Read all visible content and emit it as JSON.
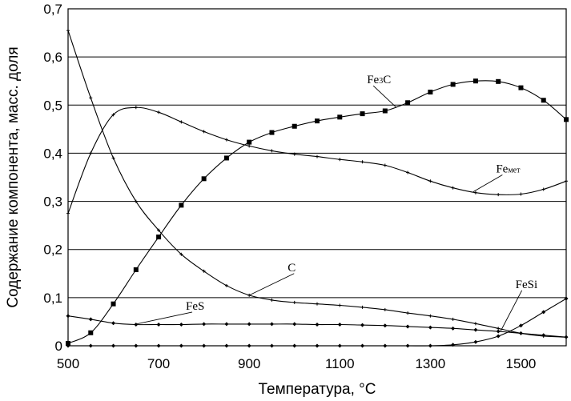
{
  "chart_data": {
    "type": "line",
    "xlabel": "Температура, °C",
    "ylabel": "Содержание компонента, масс. доля",
    "xlim": [
      500,
      1600
    ],
    "ylim": [
      0,
      0.7
    ],
    "xticks": [
      "500",
      "700",
      "900",
      "1100",
      "1300",
      "1500"
    ],
    "yticks": [
      "0",
      "0,1",
      "0,2",
      "0,3",
      "0,4",
      "0,5",
      "0,6",
      "0,7"
    ],
    "grid": "horizontal",
    "series": [
      {
        "name": "Fe3C",
        "label": "Fe3C",
        "label_main": "Fe",
        "label_sub": "3",
        "label_end": "C",
        "marker": "square",
        "x": [
          500,
          550,
          600,
          650,
          700,
          750,
          800,
          850,
          900,
          950,
          1000,
          1050,
          1100,
          1150,
          1200,
          1250,
          1300,
          1350,
          1400,
          1450,
          1500,
          1550,
          1600
        ],
        "y": [
          0.005,
          0.027,
          0.087,
          0.158,
          0.226,
          0.292,
          0.347,
          0.39,
          0.423,
          0.443,
          0.456,
          0.467,
          0.475,
          0.482,
          0.488,
          0.505,
          0.527,
          0.543,
          0.55,
          0.549,
          0.536,
          0.51,
          0.47
        ]
      },
      {
        "name": "Feмет",
        "label": "Feмет",
        "label_main": "Fe",
        "label_sub": "мет",
        "marker": "plus",
        "x": [
          500,
          550,
          600,
          650,
          700,
          750,
          800,
          850,
          900,
          950,
          1000,
          1050,
          1100,
          1150,
          1200,
          1250,
          1300,
          1350,
          1400,
          1450,
          1500,
          1550,
          1600
        ],
        "y": [
          0.275,
          0.4,
          0.48,
          0.495,
          0.485,
          0.465,
          0.445,
          0.428,
          0.415,
          0.405,
          0.398,
          0.393,
          0.387,
          0.382,
          0.375,
          0.36,
          0.342,
          0.328,
          0.318,
          0.314,
          0.315,
          0.325,
          0.342
        ]
      },
      {
        "name": "C",
        "label": "C",
        "marker": "plus",
        "x": [
          500,
          550,
          600,
          650,
          700,
          750,
          800,
          850,
          900,
          950,
          1000,
          1050,
          1100,
          1150,
          1200,
          1250,
          1300,
          1350,
          1400,
          1450,
          1500,
          1550,
          1600
        ],
        "y": [
          0.655,
          0.515,
          0.39,
          0.3,
          0.24,
          0.19,
          0.155,
          0.125,
          0.105,
          0.095,
          0.09,
          0.087,
          0.084,
          0.08,
          0.075,
          0.068,
          0.062,
          0.055,
          0.046,
          0.036,
          0.026,
          0.02,
          0.018
        ]
      },
      {
        "name": "FeS",
        "label": "FeS",
        "marker": "diamond",
        "x": [
          500,
          550,
          600,
          650,
          700,
          750,
          800,
          850,
          900,
          950,
          1000,
          1050,
          1100,
          1150,
          1200,
          1250,
          1300,
          1350,
          1400,
          1450,
          1500,
          1550,
          1600
        ],
        "y": [
          0.062,
          0.055,
          0.047,
          0.044,
          0.044,
          0.044,
          0.045,
          0.045,
          0.045,
          0.045,
          0.045,
          0.044,
          0.044,
          0.043,
          0.042,
          0.04,
          0.038,
          0.036,
          0.033,
          0.03,
          0.026,
          0.022,
          0.018
        ]
      },
      {
        "name": "FeSi",
        "label": "FeSi",
        "marker": "diamond",
        "x": [
          500,
          550,
          600,
          650,
          700,
          750,
          800,
          850,
          900,
          950,
          1000,
          1050,
          1100,
          1150,
          1200,
          1250,
          1300,
          1350,
          1400,
          1450,
          1500,
          1550,
          1600
        ],
        "y": [
          0,
          0,
          0,
          0,
          0,
          0,
          0,
          0,
          0,
          0,
          0,
          0,
          0,
          0,
          0,
          0,
          0.0,
          0.002,
          0.008,
          0.02,
          0.042,
          0.07,
          0.098
        ]
      }
    ],
    "annotations": [
      {
        "series": "Fe3C",
        "text_x": 1160,
        "text_y": 0.545,
        "point_x": 1225,
        "point_y": 0.495
      },
      {
        "series": "Feмет",
        "text_x": 1445,
        "text_y": 0.36,
        "point_x": 1395,
        "point_y": 0.32
      },
      {
        "series": "C",
        "text_x": 985,
        "text_y": 0.155,
        "point_x": 900,
        "point_y": 0.105
      },
      {
        "series": "FeS",
        "text_x": 760,
        "text_y": 0.075,
        "point_x": 650,
        "point_y": 0.045
      },
      {
        "series": "FeSi",
        "text_x": 1488,
        "text_y": 0.12,
        "point_x": 1455,
        "point_y": 0.03
      }
    ]
  }
}
